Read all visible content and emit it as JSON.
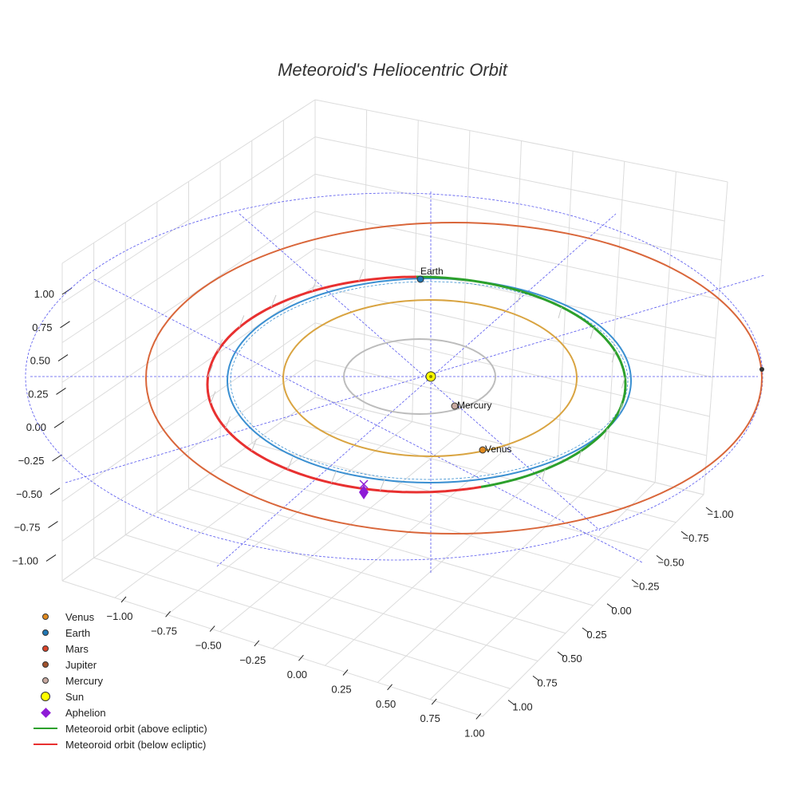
{
  "chart_data": {
    "type": "scatter3d",
    "title": "Meteoroid's Heliocentric Orbit",
    "axes": {
      "x_ticks": [
        "−1.00",
        "−0.75",
        "−0.50",
        "−0.25",
        "0.00",
        "0.25",
        "0.50",
        "0.75",
        "1.00"
      ],
      "y_ticks": [
        "−1.00",
        "−0.75",
        "−0.50",
        "−0.25",
        "0.00",
        "0.25",
        "0.50",
        "0.75",
        "1.00"
      ],
      "z_ticks": [
        "1.00",
        "0.75",
        "0.50",
        "0.25",
        "0.00",
        "−0.25",
        "−0.50",
        "−0.75",
        "−1.00"
      ],
      "range": [
        -1,
        1
      ],
      "grid": true
    },
    "planets": [
      {
        "name": "Mercury",
        "a_au": 0.39,
        "color": "#bcbcbc",
        "marker": "#c8a9a0",
        "labeled": true
      },
      {
        "name": "Venus",
        "a_au": 0.72,
        "color": "#d9a441",
        "marker": "#e08a1e",
        "labeled": true
      },
      {
        "name": "Earth",
        "a_au": 1.0,
        "color": "#3a8fd1",
        "marker": "#1f77b4",
        "labeled": true
      },
      {
        "name": "Mars",
        "a_au": 1.52,
        "color": "#d9663a",
        "marker": "#d9442a",
        "labeled": false
      }
    ],
    "meteoroid_orbit": {
      "above_ecliptic_color": "#2ca02c",
      "below_ecliptic_color": "#e83030"
    },
    "aphelion_color": "#8e1bd6",
    "sun_color": "#ffff00",
    "ecliptic_grid_color": "#5555ee",
    "legend": [
      {
        "label": "Venus",
        "kind": "dot",
        "color": "#e08a1e"
      },
      {
        "label": "Earth",
        "kind": "dot",
        "color": "#1f77b4"
      },
      {
        "label": "Mars",
        "kind": "dot",
        "color": "#d9442a"
      },
      {
        "label": "Jupiter",
        "kind": "dot",
        "color": "#a0522d"
      },
      {
        "label": "Mercury",
        "kind": "dot",
        "color": "#c8a9a0"
      },
      {
        "label": "Sun",
        "kind": "bigdot",
        "color": "#ffff00"
      },
      {
        "label": "Aphelion",
        "kind": "diamond",
        "color": "#8e1bd6"
      },
      {
        "label": "Meteoroid orbit (above ecliptic)",
        "kind": "line",
        "color": "#2ca02c"
      },
      {
        "label": "Meteoroid orbit (below ecliptic)",
        "kind": "line",
        "color": "#e83030"
      }
    ]
  }
}
